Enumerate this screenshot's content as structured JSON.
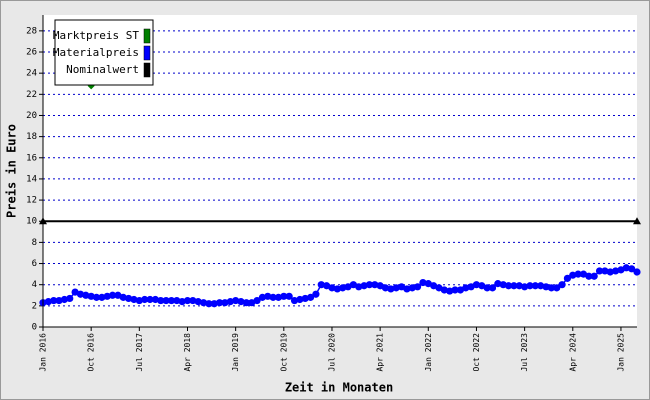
{
  "chart_data": {
    "type": "line",
    "ylabel": "Preis in Euro",
    "xlabel": "Zeit in Monaten",
    "categories": [
      "Jan 2016",
      null,
      null,
      null,
      null,
      null,
      null,
      null,
      null,
      "Oct 2016",
      null,
      null,
      null,
      null,
      null,
      null,
      null,
      null,
      "Jul 2017",
      null,
      null,
      null,
      null,
      null,
      null,
      null,
      null,
      "Apr 2018",
      null,
      null,
      null,
      null,
      null,
      null,
      null,
      null,
      "Jan 2019",
      null,
      null,
      null,
      null,
      null,
      null,
      null,
      null,
      "Oct 2019",
      null,
      null,
      null,
      null,
      null,
      null,
      null,
      null,
      "Jul 2020",
      null,
      null,
      null,
      null,
      null,
      null,
      null,
      null,
      "Apr 2021",
      null,
      null,
      null,
      null,
      null,
      null,
      null,
      null,
      "Jan 2022",
      null,
      null,
      null,
      null,
      null,
      null,
      null,
      null,
      "Oct 2022",
      null,
      null,
      null,
      null,
      null,
      null,
      null,
      null,
      "Jul 2023",
      null,
      null,
      null,
      null,
      null,
      null,
      null,
      null,
      "Apr 2024",
      null,
      null,
      null,
      null,
      null,
      null,
      null,
      null,
      "Jan 2025",
      null,
      null,
      null
    ],
    "series": [
      {
        "name": "Marktpreis ST",
        "color": "#008000",
        "marker": "diamond",
        "values": [
          null,
          null,
          null,
          null,
          null,
          null,
          null,
          null,
          null,
          22.8,
          null,
          null,
          null,
          null,
          null,
          null,
          null,
          null,
          null,
          null,
          null,
          null,
          null,
          null,
          null,
          null,
          null,
          null,
          null,
          null,
          null,
          null,
          null,
          null,
          null,
          null,
          null,
          null,
          null,
          null,
          null,
          null,
          null,
          null,
          null,
          null,
          null,
          null,
          null,
          null,
          null,
          null,
          null,
          null,
          null,
          null,
          null,
          null,
          null,
          null,
          null,
          null,
          null,
          null,
          null,
          null,
          null,
          null,
          null,
          null,
          null,
          null,
          null,
          null,
          null,
          null,
          null,
          null,
          null,
          null,
          null,
          null,
          null,
          null,
          null,
          null,
          null,
          null,
          null,
          null,
          null,
          null,
          null,
          null,
          null,
          null,
          null,
          null,
          null,
          null,
          null,
          null,
          null,
          null,
          null,
          null,
          null,
          null,
          null,
          null,
          null,
          null
        ]
      },
      {
        "name": "Materialpreis",
        "color": "#0000ff",
        "marker": "circle",
        "values": [
          2.3,
          2.4,
          2.5,
          2.5,
          2.6,
          2.7,
          3.3,
          3.1,
          3.0,
          2.9,
          2.8,
          2.8,
          2.9,
          3.0,
          3.0,
          2.8,
          2.7,
          2.6,
          2.5,
          2.6,
          2.6,
          2.6,
          2.5,
          2.5,
          2.5,
          2.5,
          2.4,
          2.5,
          2.5,
          2.4,
          2.3,
          2.2,
          2.2,
          2.3,
          2.3,
          2.4,
          2.5,
          2.4,
          2.3,
          2.3,
          2.5,
          2.8,
          2.9,
          2.8,
          2.8,
          2.9,
          2.9,
          2.5,
          2.6,
          2.7,
          2.8,
          3.1,
          4.0,
          3.9,
          3.7,
          3.6,
          3.7,
          3.8,
          4.0,
          3.8,
          3.9,
          4.0,
          4.0,
          3.9,
          3.7,
          3.6,
          3.7,
          3.8,
          3.6,
          3.7,
          3.8,
          4.2,
          4.1,
          3.9,
          3.7,
          3.5,
          3.4,
          3.5,
          3.5,
          3.7,
          3.8,
          4.0,
          3.9,
          3.7,
          3.7,
          4.1,
          4.0,
          3.9,
          3.9,
          3.9,
          3.8,
          3.9,
          3.9,
          3.9,
          3.8,
          3.7,
          3.7,
          4.0,
          4.6,
          4.9,
          5.0,
          5.0,
          4.8,
          4.8,
          5.3,
          5.3,
          5.2,
          5.3,
          5.4,
          5.6,
          5.5,
          5.2
        ]
      },
      {
        "name": "Nominalwert",
        "color": "#000000",
        "marker": "triangle",
        "values": [
          10,
          10,
          10,
          10,
          10,
          10,
          10,
          10,
          10,
          10,
          10,
          10,
          10,
          10,
          10,
          10,
          10,
          10,
          10,
          10,
          10,
          10,
          10,
          10,
          10,
          10,
          10,
          10,
          10,
          10,
          10,
          10,
          10,
          10,
          10,
          10,
          10,
          10,
          10,
          10,
          10,
          10,
          10,
          10,
          10,
          10,
          10,
          10,
          10,
          10,
          10,
          10,
          10,
          10,
          10,
          10,
          10,
          10,
          10,
          10,
          10,
          10,
          10,
          10,
          10,
          10,
          10,
          10,
          10,
          10,
          10,
          10,
          10,
          10,
          10,
          10,
          10,
          10,
          10,
          10,
          10,
          10,
          10,
          10,
          10,
          10,
          10,
          10,
          10,
          10,
          10,
          10,
          10,
          10,
          10,
          10,
          10,
          10,
          10,
          10,
          10,
          10,
          10,
          10,
          10,
          10,
          10,
          10,
          10,
          10,
          10,
          10
        ]
      }
    ],
    "ylim": [
      0,
      29.5
    ],
    "yticks": [
      0,
      2,
      4,
      6,
      8,
      10,
      12,
      14,
      16,
      18,
      20,
      22,
      24,
      26,
      28
    ],
    "grid": true,
    "legend": "upper left"
  }
}
